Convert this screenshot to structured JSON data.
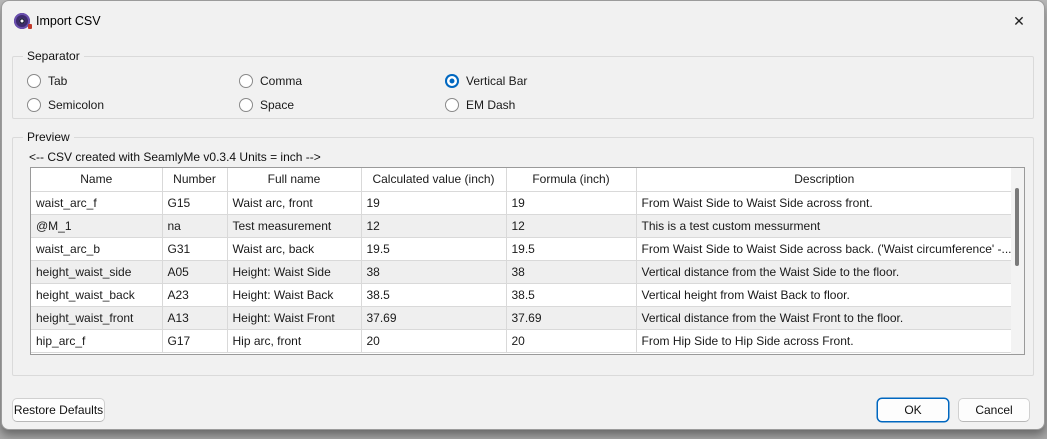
{
  "window": {
    "title": "Import CSV",
    "close_glyph": "✕"
  },
  "separator_group": {
    "label": "Separator",
    "options": [
      {
        "label": "Tab",
        "selected": false
      },
      {
        "label": "Comma",
        "selected": false
      },
      {
        "label": "Vertical Bar",
        "selected": true
      },
      {
        "label": "Semicolon",
        "selected": false
      },
      {
        "label": "Space",
        "selected": false
      },
      {
        "label": "EM Dash",
        "selected": false
      }
    ]
  },
  "preview_group": {
    "label": "Preview",
    "comment": "<-- CSV created with SeamlyMe v0.3.4 Units = inch -->",
    "table": {
      "columns": [
        "Name",
        "Number",
        "Full name",
        "Calculated value (inch)",
        "Formula (inch)",
        "Description"
      ],
      "rows": [
        [
          "waist_arc_f",
          "G15",
          "Waist arc, front",
          "19",
          "19",
          "From Waist Side to Waist Side across front."
        ],
        [
          "@M_1",
          "na",
          "Test measurement",
          "12",
          "12",
          "This is a test custom messurment"
        ],
        [
          "waist_arc_b",
          "G31",
          "Waist arc, back",
          "19.5",
          "19.5",
          "From Waist Side to Waist Side across back. ('Waist circumference' -..."
        ],
        [
          "height_waist_side",
          "A05",
          "Height: Waist Side",
          "38",
          "38",
          "Vertical distance from the Waist Side to the floor."
        ],
        [
          "height_waist_back",
          "A23",
          "Height: Waist Back",
          "38.5",
          "38.5",
          "Vertical height from Waist Back to floor."
        ],
        [
          "height_waist_front",
          "A13",
          "Height: Waist Front",
          "37.69",
          "37.69",
          "Vertical distance from the Waist Front to the floor."
        ],
        [
          "hip_arc_f",
          "G17",
          "Hip arc, front",
          "20",
          "20",
          "From Hip Side to Hip Side across Front."
        ]
      ]
    }
  },
  "buttons": {
    "restore_defaults": "Restore Defaults",
    "ok": "OK",
    "cancel": "Cancel"
  },
  "colors": {
    "accent": "#0067c0",
    "row_alt": "#efefef",
    "dialog_bg": "#f1f1f1"
  }
}
